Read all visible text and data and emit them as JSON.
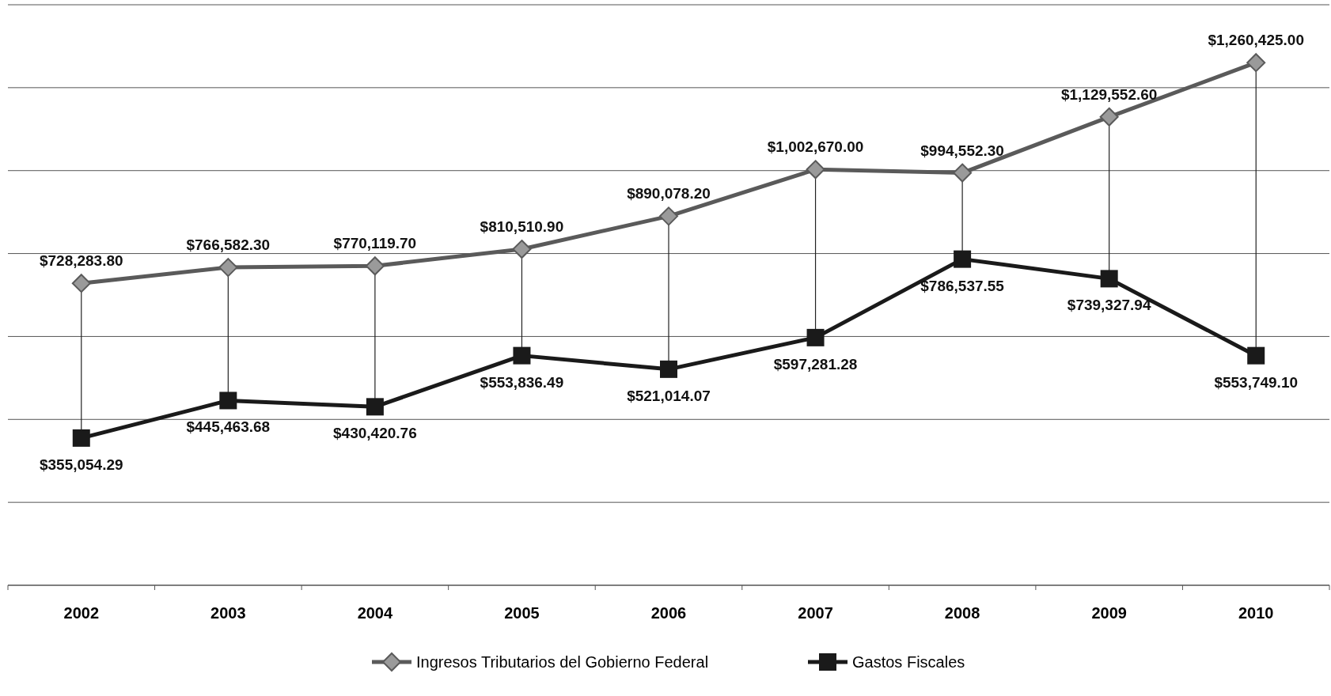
{
  "chart_data": {
    "type": "line",
    "categories": [
      "2002",
      "2003",
      "2004",
      "2005",
      "2006",
      "2007",
      "2008",
      "2009",
      "2010"
    ],
    "series": [
      {
        "name": "Ingresos Tributarios del Gobierno Federal",
        "color": "#5a5a5a",
        "marker": "diamond",
        "values": [
          728283.8,
          766582.3,
          770119.7,
          810510.9,
          890078.2,
          1002670,
          994552.3,
          1129552.6,
          1260425
        ],
        "value_labels": [
          "$728,283.80",
          "$766,582.30",
          "$770,119.70",
          "$810,510.90",
          "$890,078.20",
          "$1,002,670.00",
          "$994,552.30",
          "$1,129,552.60",
          "$1,260,425.00"
        ]
      },
      {
        "name": "Gastos Fiscales",
        "color": "#1a1a1a",
        "marker": "square",
        "values": [
          355054.29,
          445463.68,
          430420.76,
          553836.49,
          521014.07,
          597281.28,
          786537.55,
          739327.94,
          553749.1
        ],
        "value_labels": [
          "$355,054.29",
          "$445,463.68",
          "$430,420.76",
          "$553,836.49",
          "$521,014.07",
          "$597,281.28",
          "$786,537.55",
          "$739,327.94",
          "$553,749.10"
        ]
      }
    ],
    "ylim": [
      0,
      1400000
    ],
    "yticks": [
      {
        "value": 0,
        "label": null
      },
      {
        "value": 200000,
        "label": null
      },
      {
        "value": 400000,
        "label": null
      },
      {
        "value": 600000,
        "label": null
      },
      {
        "value": 800000,
        "label": null
      },
      {
        "value": 1000000,
        "label": null
      },
      {
        "value": 1200000,
        "label": null
      },
      {
        "value": 1400000,
        "label": null
      }
    ],
    "tick_labels": "x",
    "grid": "y",
    "legend": "bottom",
    "line_style": "solid"
  }
}
